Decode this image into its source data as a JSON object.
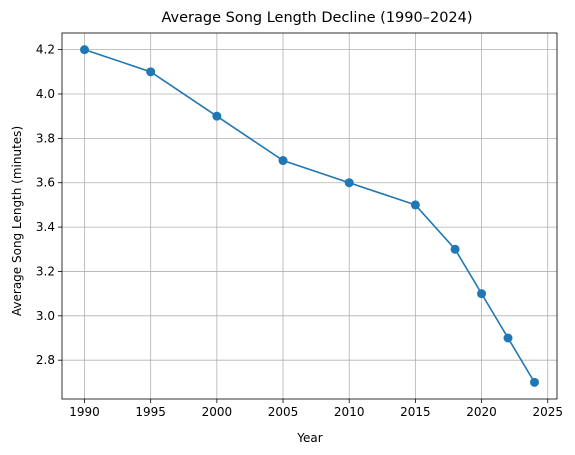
{
  "chart_data": {
    "type": "line",
    "title": "Average Song Length Decline (1990–2024)",
    "xlabel": "Year",
    "ylabel": "Average Song Length (minutes)",
    "x": [
      1990,
      1995,
      2000,
      2005,
      2010,
      2015,
      2018,
      2020,
      2022,
      2024
    ],
    "series": [
      {
        "values": [
          4.2,
          4.1,
          3.9,
          3.7,
          3.6,
          3.5,
          3.3,
          3.1,
          2.9,
          2.7
        ],
        "color": "#1f77b4",
        "marker": "circle"
      }
    ],
    "xlim": [
      1988.3,
      2025.7
    ],
    "ylim": [
      2.625,
      4.275
    ],
    "xticks": [
      1990,
      1995,
      2000,
      2005,
      2010,
      2015,
      2020,
      2025
    ],
    "yticks": [
      2.8,
      3.0,
      3.2,
      3.4,
      3.6,
      3.8,
      4.0,
      4.2
    ],
    "grid": true,
    "legend": false
  }
}
